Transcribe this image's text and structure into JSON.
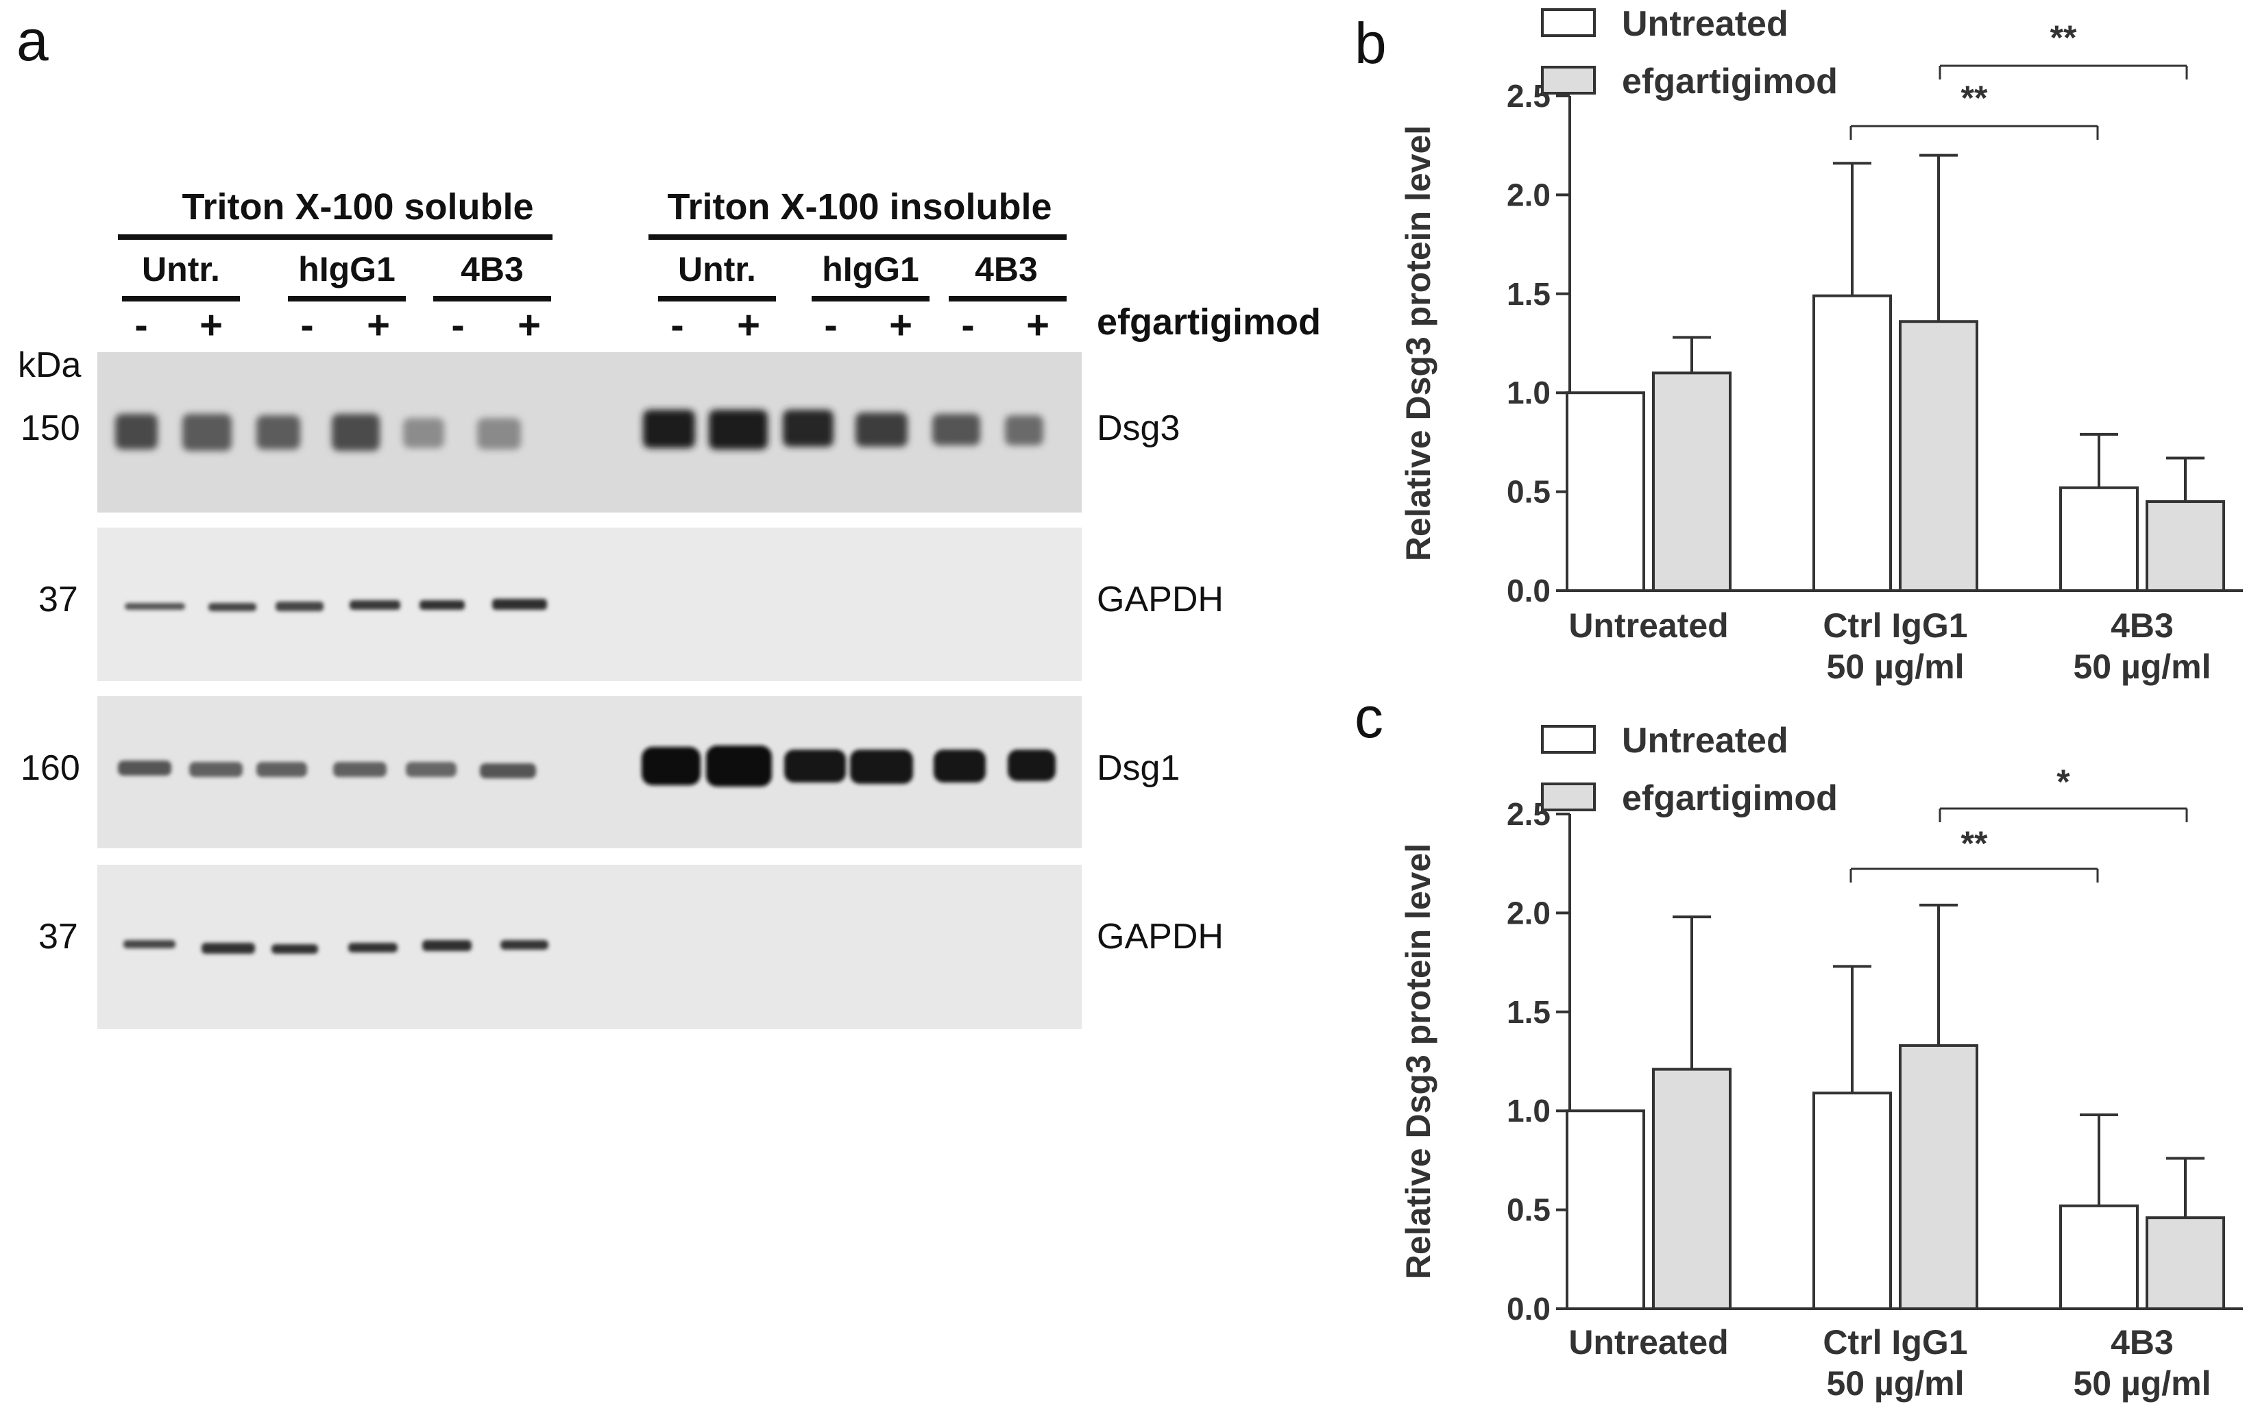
{
  "panel_a": {
    "letter": "a",
    "group_headers": [
      "Triton X-100 soluble",
      "Triton X-100 insoluble"
    ],
    "treatments": [
      "Untr.",
      "hIgG1",
      "4B3",
      "Untr.",
      "hIgG1",
      "4B3"
    ],
    "signs": [
      "-",
      "+"
    ],
    "efgartigimod_label": "efgartigimod",
    "kda_label": "kDa",
    "blots": [
      {
        "kda": "150",
        "label": "Dsg3"
      },
      {
        "kda": "37",
        "label": "GAPDH"
      },
      {
        "kda": "160",
        "label": "Dsg1"
      },
      {
        "kda": "37",
        "label": "GAPDH"
      }
    ]
  },
  "colors": {
    "untreated_bar": "#ffffff",
    "efgartigimod_bar": "#dddddd",
    "blot_background": "#dadada",
    "axis": "#333333"
  },
  "chart_data": [
    {
      "letter": "b",
      "type": "bar",
      "categories": [
        [
          "Untreated"
        ],
        [
          "Ctrl IgG1",
          "50 µg/ml"
        ],
        [
          "4B3",
          "50 µg/ml"
        ]
      ],
      "series": [
        {
          "name": "Untreated",
          "values": [
            1.0,
            1.49,
            0.52
          ],
          "errors": [
            0.0,
            0.67,
            0.27
          ]
        },
        {
          "name": "efgartigimod",
          "values": [
            1.1,
            1.36,
            0.45
          ],
          "errors": [
            0.18,
            0.84,
            0.22
          ]
        }
      ],
      "ylabel": "Relative Dsg3 protein level",
      "ylim": [
        0,
        2.5
      ],
      "yticks": [
        "0.0",
        "0.5",
        "1.0",
        "1.5",
        "2.0",
        "2.5"
      ],
      "legend": "top-left",
      "significance": [
        {
          "from_category": 1,
          "to_category": 2,
          "label": "**"
        },
        {
          "from_category": 1,
          "to_category": 2,
          "label": "**"
        }
      ]
    },
    {
      "letter": "c",
      "type": "bar",
      "categories": [
        [
          "Untreated"
        ],
        [
          "Ctrl IgG1",
          "50 µg/ml"
        ],
        [
          "4B3",
          "50 µg/ml"
        ]
      ],
      "series": [
        {
          "name": "Untreated",
          "values": [
            1.0,
            1.09,
            0.52
          ],
          "errors": [
            0.0,
            0.64,
            0.46
          ]
        },
        {
          "name": "efgartigimod",
          "values": [
            1.21,
            1.33,
            0.46
          ],
          "errors": [
            0.77,
            0.71,
            0.3
          ]
        }
      ],
      "ylabel": "Relative Dsg3 protein level",
      "ylim": [
        0,
        2.5
      ],
      "yticks": [
        "0.0",
        "0.5",
        "1.0",
        "1.5",
        "2.0",
        "2.5"
      ],
      "legend": "top-left",
      "significance": [
        {
          "from_category": 1,
          "to_category": 2,
          "label": "*"
        },
        {
          "from_category": 1,
          "to_category": 2,
          "label": "**"
        }
      ]
    }
  ]
}
